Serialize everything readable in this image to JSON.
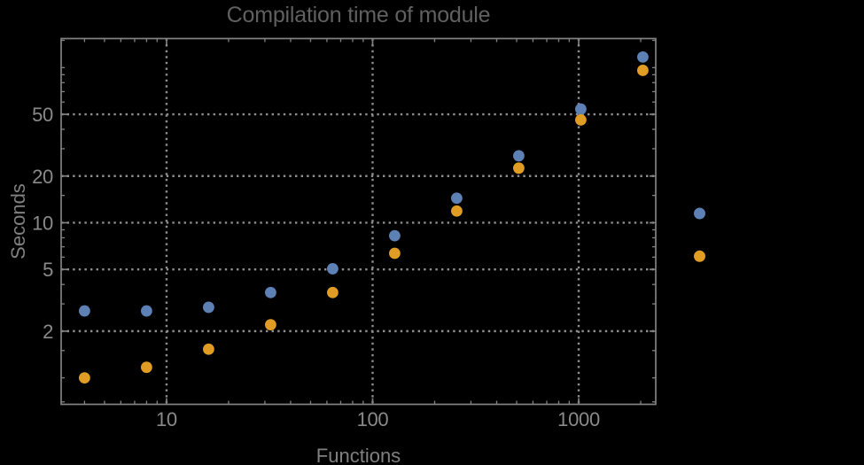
{
  "chart_data": {
    "type": "scatter",
    "title": "Compilation time of module",
    "xlabel": "Functions",
    "ylabel": "Seconds",
    "x_scale": "log",
    "y_scale": "log",
    "x_range": [
      3.08,
      2366
    ],
    "y_range": [
      0.675,
      154
    ],
    "grid": {
      "style": "dotted",
      "x_at": [
        10,
        100,
        1000
      ],
      "y_at": [
        2,
        5,
        10,
        20,
        50
      ]
    },
    "x_ticks": {
      "values": [
        10,
        100,
        1000
      ],
      "labels": [
        "10",
        "100",
        "1000"
      ],
      "minor": [
        4,
        5,
        6,
        7,
        8,
        9,
        20,
        30,
        40,
        50,
        60,
        70,
        80,
        90,
        200,
        300,
        400,
        500,
        600,
        700,
        800,
        900,
        2000
      ]
    },
    "y_ticks": {
      "values": [
        2,
        5,
        10,
        20,
        50
      ],
      "labels": [
        "2",
        "5",
        "10",
        "20",
        "50"
      ],
      "minor": [
        0.7,
        1,
        1.5,
        3,
        4,
        6,
        7,
        8,
        9,
        15,
        30,
        40,
        60,
        70,
        80,
        90,
        100,
        150
      ]
    },
    "series": [
      {
        "name": "blue-series",
        "marker": "filled-circle",
        "color": "#5e81b5",
        "x": [
          4,
          8,
          16,
          32,
          64,
          128,
          256,
          512,
          1024,
          2048
        ],
        "y": [
          2.7,
          2.7,
          2.85,
          3.55,
          5.05,
          8.25,
          14.4,
          27,
          54,
          117
        ]
      },
      {
        "name": "orange-series",
        "marker": "filled-circle",
        "color": "#e19c24",
        "x": [
          4,
          8,
          16,
          32,
          64,
          128,
          256,
          512,
          1024,
          2048
        ],
        "y": [
          1.0,
          1.17,
          1.53,
          2.2,
          3.55,
          6.35,
          11.9,
          22.5,
          46,
          96
        ]
      }
    ],
    "legend": {
      "position": "right-of-frame",
      "labels_visible": false,
      "markers": [
        {
          "series": "blue-series",
          "color": "#5e81b5"
        },
        {
          "series": "orange-series",
          "color": "#e19c24"
        }
      ]
    }
  },
  "colors": {
    "background": "#000000",
    "frame": "#828282",
    "grid": "#8e8e8e",
    "tick_labels": "#8a8a8a",
    "axis_labels": "#808080",
    "title": "#606060"
  }
}
